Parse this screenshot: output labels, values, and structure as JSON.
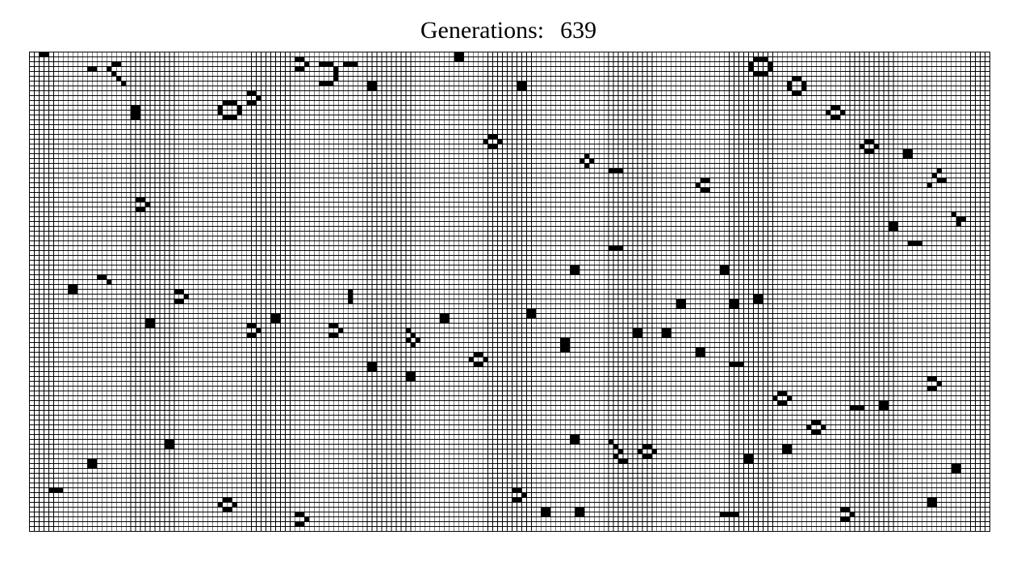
{
  "header": {
    "label": "Generations:",
    "count": "639"
  },
  "board": {
    "cols": 199,
    "rows": 99,
    "alive_color": "#000000",
    "dead_color": "#ffffff",
    "grid_color": "#000000",
    "live_cells": [
      [
        2,
        0
      ],
      [
        3,
        0
      ],
      [
        12,
        3
      ],
      [
        13,
        3
      ],
      [
        16,
        3
      ],
      [
        17,
        2
      ],
      [
        18,
        2
      ],
      [
        17,
        4
      ],
      [
        18,
        5
      ],
      [
        19,
        6
      ],
      [
        21,
        11
      ],
      [
        22,
        11
      ],
      [
        21,
        12
      ],
      [
        22,
        12
      ],
      [
        21,
        13
      ],
      [
        22,
        13
      ],
      [
        40,
        10
      ],
      [
        41,
        10
      ],
      [
        42,
        10
      ],
      [
        39,
        11
      ],
      [
        43,
        11
      ],
      [
        39,
        12
      ],
      [
        43,
        12
      ],
      [
        40,
        13
      ],
      [
        41,
        13
      ],
      [
        42,
        13
      ],
      [
        45,
        8
      ],
      [
        46,
        8
      ],
      [
        47,
        9
      ],
      [
        46,
        10
      ],
      [
        45,
        10
      ],
      [
        22,
        30
      ],
      [
        23,
        30
      ],
      [
        24,
        31
      ],
      [
        23,
        32
      ],
      [
        22,
        32
      ],
      [
        55,
        1
      ],
      [
        56,
        1
      ],
      [
        57,
        2
      ],
      [
        56,
        3
      ],
      [
        55,
        3
      ],
      [
        60,
        2
      ],
      [
        61,
        2
      ],
      [
        62,
        2
      ],
      [
        65,
        2
      ],
      [
        66,
        2
      ],
      [
        67,
        2
      ],
      [
        63,
        3
      ],
      [
        63,
        4
      ],
      [
        63,
        5
      ],
      [
        62,
        6
      ],
      [
        61,
        6
      ],
      [
        60,
        6
      ],
      [
        70,
        6
      ],
      [
        71,
        6
      ],
      [
        70,
        7
      ],
      [
        71,
        7
      ],
      [
        88,
        0
      ],
      [
        89,
        0
      ],
      [
        88,
        1
      ],
      [
        89,
        1
      ],
      [
        101,
        6
      ],
      [
        102,
        6
      ],
      [
        101,
        7
      ],
      [
        102,
        7
      ],
      [
        95,
        17
      ],
      [
        96,
        17
      ],
      [
        94,
        18
      ],
      [
        97,
        18
      ],
      [
        95,
        19
      ],
      [
        96,
        19
      ],
      [
        114,
        22
      ],
      [
        115,
        23
      ],
      [
        116,
        22
      ],
      [
        115,
        21
      ],
      [
        120,
        24
      ],
      [
        121,
        24
      ],
      [
        122,
        24
      ],
      [
        138,
        27
      ],
      [
        139,
        26
      ],
      [
        140,
        26
      ],
      [
        139,
        28
      ],
      [
        140,
        28
      ],
      [
        150,
        1
      ],
      [
        151,
        1
      ],
      [
        152,
        1
      ],
      [
        149,
        2
      ],
      [
        153,
        2
      ],
      [
        149,
        3
      ],
      [
        153,
        3
      ],
      [
        150,
        4
      ],
      [
        151,
        4
      ],
      [
        152,
        4
      ],
      [
        158,
        5
      ],
      [
        159,
        5
      ],
      [
        157,
        6
      ],
      [
        160,
        6
      ],
      [
        157,
        7
      ],
      [
        160,
        7
      ],
      [
        158,
        8
      ],
      [
        159,
        8
      ],
      [
        166,
        11
      ],
      [
        167,
        11
      ],
      [
        165,
        12
      ],
      [
        168,
        12
      ],
      [
        166,
        13
      ],
      [
        167,
        13
      ],
      [
        173,
        18
      ],
      [
        174,
        18
      ],
      [
        172,
        19
      ],
      [
        175,
        19
      ],
      [
        173,
        20
      ],
      [
        174,
        20
      ],
      [
        181,
        20
      ],
      [
        182,
        20
      ],
      [
        181,
        21
      ],
      [
        182,
        21
      ],
      [
        187,
        25
      ],
      [
        188,
        26
      ],
      [
        189,
        26
      ],
      [
        188,
        24
      ],
      [
        186,
        27
      ],
      [
        191,
        33
      ],
      [
        192,
        34
      ],
      [
        193,
        34
      ],
      [
        192,
        35
      ],
      [
        8,
        48
      ],
      [
        9,
        48
      ],
      [
        8,
        49
      ],
      [
        9,
        49
      ],
      [
        30,
        49
      ],
      [
        31,
        49
      ],
      [
        32,
        50
      ],
      [
        31,
        51
      ],
      [
        30,
        51
      ],
      [
        50,
        54
      ],
      [
        51,
        54
      ],
      [
        50,
        55
      ],
      [
        51,
        55
      ],
      [
        14,
        46
      ],
      [
        15,
        46
      ],
      [
        16,
        47
      ],
      [
        24,
        55
      ],
      [
        25,
        55
      ],
      [
        24,
        56
      ],
      [
        25,
        56
      ],
      [
        45,
        56
      ],
      [
        46,
        56
      ],
      [
        47,
        57
      ],
      [
        46,
        58
      ],
      [
        45,
        58
      ],
      [
        62,
        56
      ],
      [
        63,
        56
      ],
      [
        64,
        57
      ],
      [
        63,
        58
      ],
      [
        62,
        58
      ],
      [
        70,
        64
      ],
      [
        71,
        64
      ],
      [
        70,
        65
      ],
      [
        71,
        65
      ],
      [
        78,
        57
      ],
      [
        79,
        58
      ],
      [
        80,
        59
      ],
      [
        78,
        59
      ],
      [
        79,
        60
      ],
      [
        85,
        54
      ],
      [
        86,
        54
      ],
      [
        85,
        55
      ],
      [
        86,
        55
      ],
      [
        92,
        62
      ],
      [
        93,
        62
      ],
      [
        91,
        63
      ],
      [
        94,
        63
      ],
      [
        92,
        64
      ],
      [
        93,
        64
      ],
      [
        103,
        53
      ],
      [
        104,
        53
      ],
      [
        103,
        54
      ],
      [
        104,
        54
      ],
      [
        110,
        59
      ],
      [
        111,
        59
      ],
      [
        110,
        60
      ],
      [
        111,
        60
      ],
      [
        110,
        61
      ],
      [
        111,
        61
      ],
      [
        125,
        57
      ],
      [
        126,
        57
      ],
      [
        125,
        58
      ],
      [
        126,
        58
      ],
      [
        131,
        57
      ],
      [
        132,
        57
      ],
      [
        131,
        58
      ],
      [
        132,
        58
      ],
      [
        138,
        61
      ],
      [
        139,
        61
      ],
      [
        138,
        62
      ],
      [
        139,
        62
      ],
      [
        145,
        64
      ],
      [
        146,
        64
      ],
      [
        147,
        64
      ],
      [
        155,
        70
      ],
      [
        156,
        70
      ],
      [
        154,
        71
      ],
      [
        157,
        71
      ],
      [
        155,
        72
      ],
      [
        156,
        72
      ],
      [
        170,
        73
      ],
      [
        171,
        73
      ],
      [
        172,
        73
      ],
      [
        186,
        67
      ],
      [
        187,
        67
      ],
      [
        188,
        68
      ],
      [
        187,
        69
      ],
      [
        186,
        69
      ],
      [
        28,
        80
      ],
      [
        29,
        80
      ],
      [
        28,
        81
      ],
      [
        29,
        81
      ],
      [
        12,
        84
      ],
      [
        13,
        84
      ],
      [
        12,
        85
      ],
      [
        13,
        85
      ],
      [
        4,
        90
      ],
      [
        5,
        90
      ],
      [
        6,
        90
      ],
      [
        40,
        92
      ],
      [
        41,
        92
      ],
      [
        39,
        93
      ],
      [
        42,
        93
      ],
      [
        40,
        94
      ],
      [
        41,
        94
      ],
      [
        55,
        95
      ],
      [
        56,
        95
      ],
      [
        57,
        96
      ],
      [
        56,
        97
      ],
      [
        55,
        97
      ],
      [
        112,
        79
      ],
      [
        113,
        79
      ],
      [
        112,
        80
      ],
      [
        113,
        80
      ],
      [
        120,
        80
      ],
      [
        121,
        81
      ],
      [
        122,
        82
      ],
      [
        121,
        83
      ],
      [
        122,
        84
      ],
      [
        123,
        84
      ],
      [
        127,
        81
      ],
      [
        128,
        81
      ],
      [
        126,
        82
      ],
      [
        129,
        82
      ],
      [
        127,
        83
      ],
      [
        128,
        83
      ],
      [
        148,
        83
      ],
      [
        149,
        83
      ],
      [
        148,
        84
      ],
      [
        149,
        84
      ],
      [
        162,
        76
      ],
      [
        163,
        76
      ],
      [
        161,
        77
      ],
      [
        164,
        77
      ],
      [
        162,
        78
      ],
      [
        163,
        78
      ],
      [
        176,
        72
      ],
      [
        177,
        72
      ],
      [
        176,
        73
      ],
      [
        177,
        73
      ],
      [
        191,
        85
      ],
      [
        192,
        85
      ],
      [
        191,
        86
      ],
      [
        192,
        86
      ],
      [
        186,
        92
      ],
      [
        187,
        92
      ],
      [
        186,
        93
      ],
      [
        187,
        93
      ],
      [
        168,
        94
      ],
      [
        169,
        94
      ],
      [
        170,
        95
      ],
      [
        169,
        96
      ],
      [
        168,
        96
      ],
      [
        143,
        95
      ],
      [
        144,
        95
      ],
      [
        145,
        95
      ],
      [
        146,
        95
      ],
      [
        113,
        94
      ],
      [
        114,
        94
      ],
      [
        113,
        95
      ],
      [
        114,
        95
      ],
      [
        106,
        94
      ],
      [
        107,
        94
      ],
      [
        106,
        95
      ],
      [
        107,
        95
      ],
      [
        100,
        90
      ],
      [
        101,
        90
      ],
      [
        102,
        91
      ],
      [
        101,
        92
      ],
      [
        100,
        92
      ],
      [
        156,
        81
      ],
      [
        157,
        81
      ],
      [
        156,
        82
      ],
      [
        157,
        82
      ],
      [
        78,
        66
      ],
      [
        79,
        66
      ],
      [
        78,
        67
      ],
      [
        79,
        67
      ],
      [
        66,
        49
      ],
      [
        66,
        50
      ],
      [
        66,
        51
      ],
      [
        120,
        40
      ],
      [
        121,
        40
      ],
      [
        122,
        40
      ],
      [
        112,
        44
      ],
      [
        113,
        44
      ],
      [
        112,
        45
      ],
      [
        113,
        45
      ],
      [
        143,
        44
      ],
      [
        144,
        44
      ],
      [
        143,
        45
      ],
      [
        144,
        45
      ],
      [
        134,
        51
      ],
      [
        135,
        51
      ],
      [
        134,
        52
      ],
      [
        135,
        52
      ],
      [
        145,
        51
      ],
      [
        146,
        51
      ],
      [
        145,
        52
      ],
      [
        146,
        52
      ],
      [
        150,
        50
      ],
      [
        151,
        50
      ],
      [
        150,
        51
      ],
      [
        151,
        51
      ],
      [
        182,
        39
      ],
      [
        183,
        39
      ],
      [
        184,
        39
      ],
      [
        178,
        35
      ],
      [
        179,
        35
      ],
      [
        178,
        36
      ],
      [
        179,
        36
      ]
    ]
  }
}
